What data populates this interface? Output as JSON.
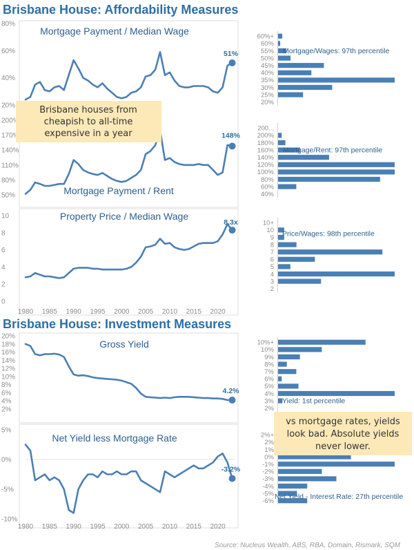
{
  "page": {
    "section_titles": [
      "Brisbane House: Affordability Measures",
      "Brisbane House: Investment Measures"
    ],
    "source": "Source: Nucleus Wealth, ABS, RBA, Domain, Rismark, SQM",
    "notes": [
      [
        "Brisbane houses from",
        "cheapish to all-time",
        "expensive in a year"
      ],
      [
        "vs mortgage rates, yields",
        "look bad. Absolute yields",
        "never lower."
      ]
    ]
  },
  "colors": {
    "line": "#4a7fb5",
    "bar": "#4a7fb5",
    "title": "#2e6fa3",
    "note_bg": "#fde9b8",
    "axis": "#8c8c8c"
  },
  "chart_data": [
    {
      "type": "line",
      "title": "Mortgage Payment / Median Wage",
      "ylim": [
        20,
        80
      ],
      "yticks": [
        "20%",
        "40%",
        "60%",
        "80%"
      ],
      "end_label": "51%",
      "x": [
        1980,
        1981,
        1982,
        1983,
        1984,
        1985,
        1986,
        1987,
        1988,
        1989,
        1990,
        1991,
        1992,
        1993,
        1994,
        1995,
        1996,
        1997,
        1998,
        1999,
        2000,
        2001,
        2002,
        2003,
        2004,
        2005,
        2006,
        2007,
        2008,
        2009,
        2010,
        2011,
        2012,
        2013,
        2014,
        2015,
        2016,
        2017,
        2018,
        2019,
        2020,
        2021,
        2022,
        2023
      ],
      "values": [
        24,
        26,
        35,
        37,
        31,
        30,
        33,
        34,
        31,
        42,
        53,
        47,
        40,
        38,
        35,
        33,
        36,
        32,
        29,
        26,
        25,
        26,
        29,
        30,
        33,
        41,
        42,
        46,
        59,
        42,
        44,
        38,
        34,
        33,
        33,
        34,
        34,
        34,
        33,
        30,
        29,
        33,
        49,
        51
      ]
    },
    {
      "type": "line",
      "title": "Mortgage Payment / Rent",
      "ylim": [
        50,
        200
      ],
      "yticks": [
        "50%",
        "80%",
        "110%",
        "140%",
        "170%",
        "200%"
      ],
      "end_label": "148%",
      "x": [
        1980,
        1981,
        1982,
        1983,
        1984,
        1985,
        1986,
        1987,
        1988,
        1989,
        1990,
        1991,
        1992,
        1993,
        1994,
        1995,
        1996,
        1997,
        1998,
        1999,
        2000,
        2001,
        2002,
        2003,
        2004,
        2005,
        2006,
        2007,
        2008,
        2009,
        2010,
        2011,
        2012,
        2013,
        2014,
        2015,
        2016,
        2017,
        2018,
        2019,
        2020,
        2021,
        2022,
        2023
      ],
      "values": [
        52,
        60,
        75,
        72,
        68,
        68,
        70,
        72,
        72,
        92,
        120,
        112,
        100,
        95,
        92,
        90,
        94,
        88,
        82,
        78,
        76,
        78,
        84,
        90,
        100,
        132,
        138,
        150,
        180,
        120,
        124,
        116,
        112,
        110,
        110,
        110,
        112,
        110,
        110,
        100,
        90,
        95,
        150,
        148
      ]
    },
    {
      "type": "line",
      "title": "Property Price / Median Wage",
      "ylim": [
        0,
        10
      ],
      "yticks": [
        "0",
        "2",
        "4",
        "6",
        "8",
        "10"
      ],
      "end_label": "8.3x",
      "x": [
        1980,
        1981,
        1982,
        1983,
        1984,
        1985,
        1986,
        1987,
        1988,
        1989,
        1990,
        1991,
        1992,
        1993,
        1994,
        1995,
        1996,
        1997,
        1998,
        1999,
        2000,
        2001,
        2002,
        2003,
        2004,
        2005,
        2006,
        2007,
        2008,
        2009,
        2010,
        2011,
        2012,
        2013,
        2014,
        2015,
        2016,
        2017,
        2018,
        2019,
        2020,
        2021,
        2022,
        2023
      ],
      "values": [
        2.8,
        2.9,
        3.3,
        3.1,
        2.9,
        2.9,
        2.8,
        2.7,
        2.8,
        3.3,
        3.8,
        3.9,
        3.9,
        3.9,
        3.8,
        3.8,
        3.7,
        3.7,
        3.7,
        3.7,
        3.7,
        3.8,
        4.0,
        4.5,
        5.2,
        6.3,
        6.4,
        6.6,
        7.3,
        6.7,
        6.8,
        6.3,
        6.1,
        6.0,
        6.1,
        6.4,
        6.7,
        6.8,
        6.8,
        6.8,
        7.0,
        7.8,
        9.0,
        8.3
      ],
      "xticks": [
        "1980",
        "1985",
        "1990",
        "1995",
        "2000",
        "2005",
        "2010",
        "2015",
        "2020"
      ]
    },
    {
      "type": "line",
      "title": "Gross Yield",
      "ylim": [
        2,
        20
      ],
      "yticks": [
        "2%",
        "4%",
        "6%",
        "8%",
        "10%",
        "12%",
        "14%",
        "16%",
        "18%",
        "20%"
      ],
      "end_label": "4.2%",
      "x": [
        1980,
        1981,
        1982,
        1983,
        1984,
        1985,
        1986,
        1987,
        1988,
        1989,
        1990,
        1991,
        1992,
        1993,
        1994,
        1995,
        1996,
        1997,
        1998,
        1999,
        2000,
        2001,
        2002,
        2003,
        2004,
        2005,
        2006,
        2007,
        2008,
        2009,
        2010,
        2011,
        2012,
        2013,
        2014,
        2015,
        2016,
        2017,
        2018,
        2019,
        2020,
        2021,
        2022,
        2023
      ],
      "values": [
        18,
        17.5,
        15.5,
        15.2,
        15.5,
        15.5,
        15.6,
        15.4,
        14.8,
        12.5,
        10.5,
        10.2,
        10.3,
        10.1,
        9.8,
        9.6,
        9.5,
        9.4,
        9.3,
        9.2,
        9.0,
        8.6,
        8.2,
        7.2,
        5.8,
        5.0,
        4.9,
        4.8,
        4.7,
        4.8,
        4.7,
        4.9,
        5.0,
        5.0,
        5.0,
        4.9,
        4.8,
        4.7,
        4.7,
        4.6,
        4.6,
        4.5,
        4.2,
        4.2
      ]
    },
    {
      "type": "line",
      "title": "Net Yield less Mortgage Rate",
      "ylim": [
        -10,
        5
      ],
      "yticks": [
        "-10%",
        "-5%",
        "0%",
        "5%"
      ],
      "end_label": "-3.2%",
      "x": [
        1980,
        1981,
        1982,
        1983,
        1984,
        1985,
        1986,
        1987,
        1988,
        1989,
        1990,
        1991,
        1992,
        1993,
        1994,
        1995,
        1996,
        1997,
        1998,
        1999,
        2000,
        2001,
        2002,
        2003,
        2004,
        2005,
        2006,
        2007,
        2008,
        2009,
        2010,
        2011,
        2012,
        2013,
        2014,
        2015,
        2016,
        2017,
        2018,
        2019,
        2020,
        2021,
        2022,
        2023
      ],
      "values": [
        2.5,
        1.5,
        -3.5,
        -3,
        -2.5,
        -3.5,
        -3,
        -3.5,
        -5,
        -8.5,
        -9,
        -5,
        -3.5,
        -2.5,
        -2.5,
        -3,
        -2,
        -2.5,
        -2.5,
        -2,
        -2.5,
        -2.5,
        -2,
        -2,
        -3.5,
        -4,
        -4.5,
        -5,
        -5.5,
        -2,
        -2.5,
        -3,
        -2.5,
        -2,
        -1.5,
        -1,
        -1.5,
        -1.5,
        -1,
        -0.5,
        0.5,
        1,
        -0.5,
        -3.2
      ],
      "xticks": [
        "1980",
        "1985",
        "1990",
        "1995",
        "2000",
        "2005",
        "2010",
        "2015",
        "2020"
      ]
    },
    {
      "type": "bar",
      "orientation": "horizontal",
      "annotation": "Mortgage/Wages: 97th percentile",
      "categories": [
        "60%+",
        "60%",
        "55%",
        "50%",
        "45%",
        "40%",
        "35%",
        "30%",
        "25%",
        "20%"
      ],
      "values": [
        1,
        0.5,
        2,
        3,
        11,
        8,
        28,
        13,
        6,
        0
      ]
    },
    {
      "type": "bar",
      "orientation": "horizontal",
      "annotation": "Mortgage/Rent: 97th percentile",
      "categories": [
        "200...",
        "200%",
        "180%",
        "160%",
        "140%",
        "120%",
        "100%",
        "80%",
        "60%",
        "40%"
      ],
      "values": [
        0,
        1,
        2,
        6,
        14,
        32,
        32,
        28,
        5,
        0
      ]
    },
    {
      "type": "bar",
      "orientation": "horizontal",
      "annotation": "Price/Wages: 98th percentile",
      "categories": [
        "10+",
        "10",
        "9",
        "8",
        "7",
        "6",
        "5",
        "4",
        "3",
        "2"
      ],
      "values": [
        0,
        1,
        1,
        3,
        17,
        6,
        2,
        19,
        7,
        0
      ]
    },
    {
      "type": "bar",
      "orientation": "horizontal",
      "annotation": "Yield: 1st percentile",
      "categories": [
        "10%+",
        "10%",
        "9%",
        "8%",
        "7%",
        "6%",
        "5%",
        "4%",
        "3%",
        "2%"
      ],
      "values": [
        12,
        6,
        3,
        1.2,
        2.5,
        0.5,
        2.8,
        16,
        0.6,
        0
      ]
    },
    {
      "type": "bar",
      "orientation": "horizontal",
      "annotation": "Net Yield - Interest Rate: 27th percentile",
      "categories": [
        "2%+",
        "2%",
        "1%",
        "0%",
        "-1%",
        "-2%",
        "-3%",
        "-4%",
        "-5%",
        "-6%"
      ],
      "values": [
        0,
        0,
        0,
        5,
        8,
        3,
        4,
        2,
        1.3,
        2
      ]
    }
  ]
}
